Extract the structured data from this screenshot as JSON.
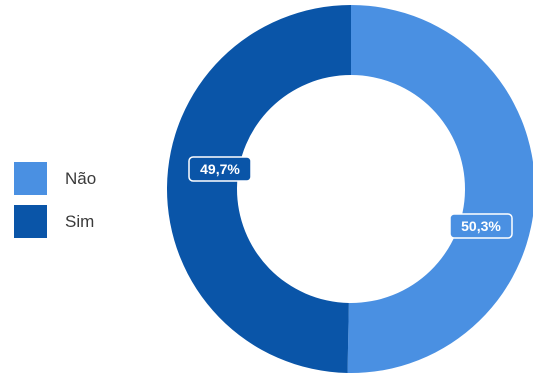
{
  "chart_data": {
    "type": "pie",
    "donut": true,
    "categories": [
      "Não",
      "Sim"
    ],
    "values": [
      50.3,
      49.7
    ],
    "data_labels": [
      "50,3%",
      "49,7%"
    ],
    "colors": [
      "#4a90e2",
      "#0a55a8"
    ],
    "legend_position": "left",
    "title": ""
  }
}
